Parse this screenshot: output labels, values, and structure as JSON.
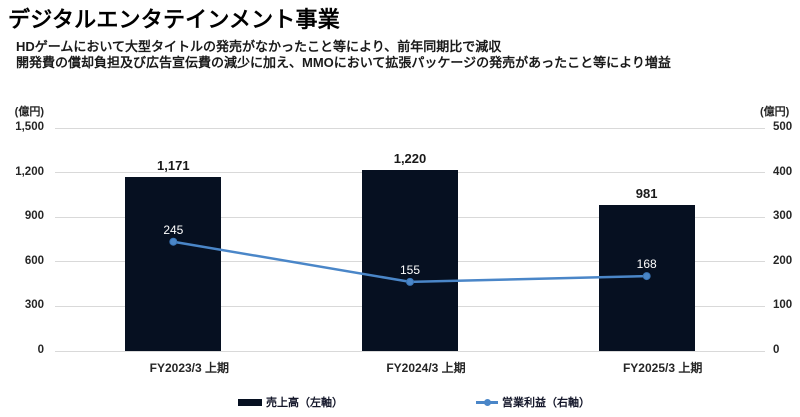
{
  "header": {
    "title": "デジタルエンタテインメント事業",
    "subtitle_line1": "HDゲームにおいて大型タイトルの発売がなかったこと等により、前年同期比で減収",
    "subtitle_line2": "開発費の償却負担及び広告宣伝費の減少に加え、MMOにおいて拡張パッケージの発売があったこと等により増益"
  },
  "chart_data": {
    "type": "bar",
    "subtype": "bar-line-combo",
    "categories": [
      "FY2023/3 上期",
      "FY2024/3 上期",
      "FY2025/3 上期"
    ],
    "series": [
      {
        "name": "売上高（左軸）",
        "type": "bar",
        "axis": "left",
        "values": [
          1171,
          1220,
          981
        ],
        "labels": [
          "1,171",
          "1,220",
          "981"
        ],
        "color": "#061021"
      },
      {
        "name": "営業利益（右軸）",
        "type": "line",
        "axis": "right",
        "values": [
          245,
          155,
          168
        ],
        "labels": [
          "245",
          "155",
          "168"
        ],
        "color": "#4a86c8"
      }
    ],
    "left_axis": {
      "unit": "(億円)",
      "min": 0,
      "max": 1500,
      "ticks": [
        "1,500",
        "1,200",
        "900",
        "600",
        "300",
        "0"
      ]
    },
    "right_axis": {
      "unit": "(億円)",
      "min": 0,
      "max": 500,
      "ticks": [
        "500",
        "400",
        "300",
        "200",
        "100",
        "0"
      ]
    },
    "grid": true,
    "legend_position": "bottom",
    "grid_color": "#d9d9d9",
    "line_label_color": "#ffffff"
  }
}
